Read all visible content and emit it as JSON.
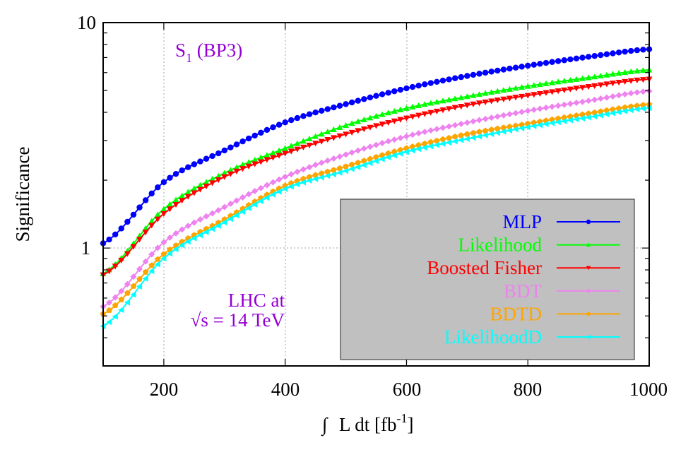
{
  "chart_data": {
    "type": "line",
    "title": "",
    "xlabel": "∫ L dt [fb-1]",
    "ylabel": "Significance",
    "xlim": [
      100,
      1000
    ],
    "ylim": [
      0.3,
      10
    ],
    "yscale": "log",
    "grid": true,
    "legend_position": "lower right",
    "x_ticks": [
      200,
      400,
      600,
      800,
      1000
    ],
    "y_ticks": [
      1,
      10
    ],
    "x": [
      100,
      200,
      300,
      400,
      500,
      600,
      700,
      800,
      900,
      1000
    ],
    "series": [
      {
        "name": "MLP",
        "color": "#0000ff",
        "marker": "circle",
        "values": [
          1.05,
          1.96,
          2.71,
          3.61,
          4.35,
          5.11,
          5.8,
          6.44,
          7.05,
          7.62
        ]
      },
      {
        "name": "Likelihood",
        "color": "#00ff00",
        "marker": "triangle-up",
        "values": [
          0.77,
          1.49,
          2.15,
          2.77,
          3.5,
          4.17,
          4.7,
          5.22,
          5.7,
          6.17
        ]
      },
      {
        "name": "Boosted Fisher",
        "color": "#ff0000",
        "marker": "triangle-down",
        "values": [
          0.76,
          1.42,
          2.07,
          2.63,
          3.2,
          3.77,
          4.3,
          4.75,
          5.2,
          5.61
        ]
      },
      {
        "name": "BDT",
        "color": "#ee82ee",
        "marker": "diamond",
        "values": [
          0.55,
          1.06,
          1.52,
          2.07,
          2.6,
          3.13,
          3.6,
          4.06,
          4.5,
          4.97
        ]
      },
      {
        "name": "BDTD",
        "color": "#ffa500",
        "marker": "pentagon",
        "values": [
          0.51,
          0.94,
          1.34,
          1.89,
          2.3,
          2.77,
          3.2,
          3.56,
          3.95,
          4.33
        ]
      },
      {
        "name": "LikelihoodD",
        "color": "#00ffff",
        "marker": "triangle-left",
        "values": [
          0.45,
          0.9,
          1.3,
          1.83,
          2.2,
          2.67,
          3.05,
          3.44,
          3.8,
          4.18
        ]
      }
    ],
    "annotations": [
      {
        "text": "S1 (BP3)",
        "color": "#9400d3"
      },
      {
        "text": "LHC at",
        "color": "#9400d3"
      },
      {
        "text": "√s = 14 TeV",
        "color": "#9400d3"
      }
    ]
  },
  "labels": {
    "y_tick_10": "10",
    "y_tick_1": "1",
    "x_tick_200": "200",
    "x_tick_400": "400",
    "x_tick_600": "600",
    "x_tick_800": "800",
    "x_tick_1000": "1000",
    "ylabel": "Significance",
    "xlabel_integral": "∫",
    "xlabel_main": "L dt [fb",
    "xlabel_sup": "-1",
    "xlabel_close": "]",
    "annot_s": "S",
    "annot_sub": "1",
    "annot_bp": " (BP3)",
    "annot_lhc": "LHC at",
    "annot_energy": "√s = 14 TeV"
  },
  "legend": {
    "items": [
      {
        "label": "MLP",
        "color": "#0000ff"
      },
      {
        "label": "Likelihood",
        "color": "#00ff00"
      },
      {
        "label": "Boosted Fisher",
        "color": "#ff0000"
      },
      {
        "label": "BDT",
        "color": "#ee82ee"
      },
      {
        "label": "BDTD",
        "color": "#ffa500"
      },
      {
        "label": "LikelihoodD",
        "color": "#00ffff"
      }
    ],
    "background": "#c0c0c0"
  }
}
